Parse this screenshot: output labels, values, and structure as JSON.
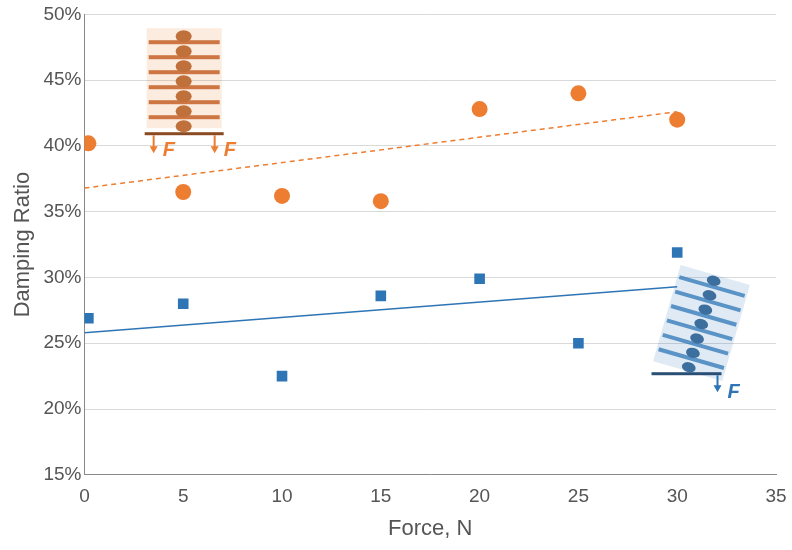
{
  "chart_data": {
    "type": "scatter",
    "x_label": "Force, N",
    "y_label": "Damping Ratio",
    "xlim": [
      0,
      35
    ],
    "xticks": [
      0,
      5,
      10,
      15,
      20,
      25,
      30,
      35
    ],
    "ylim": [
      15,
      50
    ],
    "yticks": [
      {
        "value": 15,
        "label": "15%"
      },
      {
        "value": 20,
        "label": "20%"
      },
      {
        "value": 25,
        "label": "25%"
      },
      {
        "value": 30,
        "label": "30%"
      },
      {
        "value": 35,
        "label": "35%"
      },
      {
        "value": 40,
        "label": "40%"
      },
      {
        "value": 45,
        "label": "45%"
      },
      {
        "value": 50,
        "label": "50%"
      }
    ],
    "grid": true,
    "series": [
      {
        "type": "scatter",
        "marker": "circle",
        "color": "#ed7d31",
        "x": [
          0.2,
          5,
          10,
          15,
          20,
          25,
          30
        ],
        "values": [
          40.2,
          36.5,
          36.2,
          35.8,
          42.8,
          44.0,
          42.0
        ]
      },
      {
        "type": "scatter",
        "marker": "square",
        "color": "#2e75b6",
        "x": [
          0.2,
          5,
          10,
          15,
          20,
          25,
          30
        ],
        "values": [
          26.9,
          28.0,
          22.5,
          28.6,
          29.9,
          25.0,
          31.9
        ]
      },
      {
        "type": "line",
        "line_style": "dashed",
        "color": "#ed7d31",
        "x": [
          0,
          30
        ],
        "values": [
          36.8,
          42.6
        ]
      },
      {
        "type": "line",
        "line_style": "solid",
        "color": "#2e75b6",
        "x": [
          0,
          30
        ],
        "values": [
          25.8,
          29.3
        ]
      }
    ],
    "annotations": [
      {
        "text": "F",
        "color": "#ed7d31"
      },
      {
        "text": "F",
        "color": "#ed7d31"
      },
      {
        "text": "F",
        "color": "#2e75b6"
      }
    ]
  }
}
